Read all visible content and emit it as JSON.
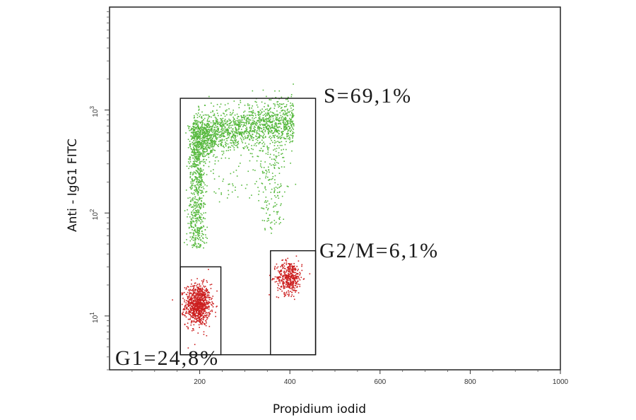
{
  "chart_data": {
    "type": "scatter",
    "title": "",
    "xlabel": "Propidium iodid",
    "ylabel": "Anti - IgG1 FITC",
    "xlim": [
      0,
      1000
    ],
    "ylim": [
      3,
      10000
    ],
    "yscale": "log",
    "x_ticks": [
      200,
      400,
      600,
      800,
      1000
    ],
    "x_tick_labels": [
      "200",
      "400",
      "600",
      "800",
      "1000"
    ],
    "y_ticks": [
      10,
      100,
      1000
    ],
    "y_tick_labels": [
      {
        "base": "10",
        "exp": "1"
      },
      {
        "base": "10",
        "exp": "2"
      },
      {
        "base": "10",
        "exp": "3"
      }
    ],
    "grid": false,
    "legend": "none",
    "colors": {
      "s_phase": "#55b83c",
      "g1_g2m": "#cc1f1f",
      "frame": "#222222",
      "gate": "#111111"
    },
    "gates": [
      {
        "name": "S",
        "label": "S=69,1%",
        "x_range": [
          157,
          457
        ],
        "y_range": [
          4.2,
          1300
        ],
        "percent": 69.1
      },
      {
        "name": "G1",
        "label": "G1=24,8%",
        "x_range": [
          157,
          247
        ],
        "y_range": [
          4.2,
          30
        ],
        "percent": 24.8
      },
      {
        "name": "G2/M",
        "label": "G2/M=6,1%",
        "x_range": [
          357,
          457
        ],
        "y_range": [
          4.2,
          43
        ],
        "percent": 6.1
      }
    ],
    "populations": [
      {
        "name": "G1",
        "color": "red",
        "center": [
          195,
          13
        ],
        "spread": [
          14,
          0.1
        ],
        "count": 900
      },
      {
        "name": "G2/M",
        "color": "red",
        "center": [
          398,
          24
        ],
        "spread": [
          14,
          0.08
        ],
        "count": 420
      },
      {
        "name": "S",
        "color": "green",
        "description_points": [
          {
            "x": 200,
            "y": 300
          },
          {
            "x": 250,
            "y": 320
          },
          {
            "x": 300,
            "y": 360
          },
          {
            "x": 350,
            "y": 390
          },
          {
            "x": 395,
            "y": 380
          }
        ],
        "count": 2600
      }
    ]
  }
}
